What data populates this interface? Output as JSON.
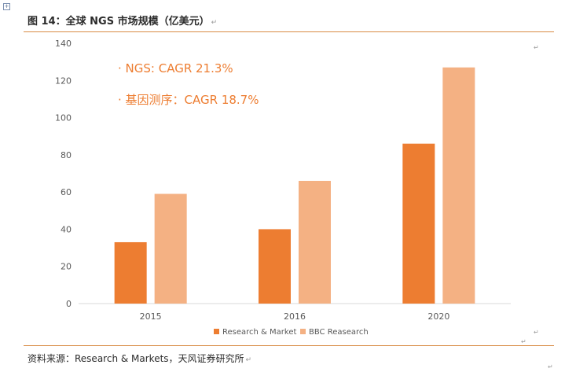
{
  "header": {
    "title": "图 14：全球 NGS 市场规模（亿美元）",
    "return_mark": "↵"
  },
  "footer": {
    "source": "资料来源：Research & Markets，天风证券研究所",
    "return_mark": "↵"
  },
  "colors": {
    "accent": "#ED7D31",
    "series_2": "#F4B183",
    "rule": "#D98C45"
  },
  "chart_data": {
    "type": "bar",
    "categories": [
      "2015",
      "2016",
      "2020"
    ],
    "series": [
      {
        "name": "Research & Market",
        "values": [
          33,
          40,
          86
        ],
        "color": "#ED7D31"
      },
      {
        "name": "BBC Reasearch",
        "values": [
          59,
          66,
          127
        ],
        "color": "#F4B183"
      }
    ],
    "ylim": [
      0,
      140
    ],
    "yticks": [
      0,
      20,
      40,
      60,
      80,
      100,
      120,
      140
    ],
    "grid": false,
    "legend": "bottom",
    "annotations": [
      "· NGS: CAGR 21.3%",
      "· 基因测序：CAGR 18.7%"
    ]
  }
}
